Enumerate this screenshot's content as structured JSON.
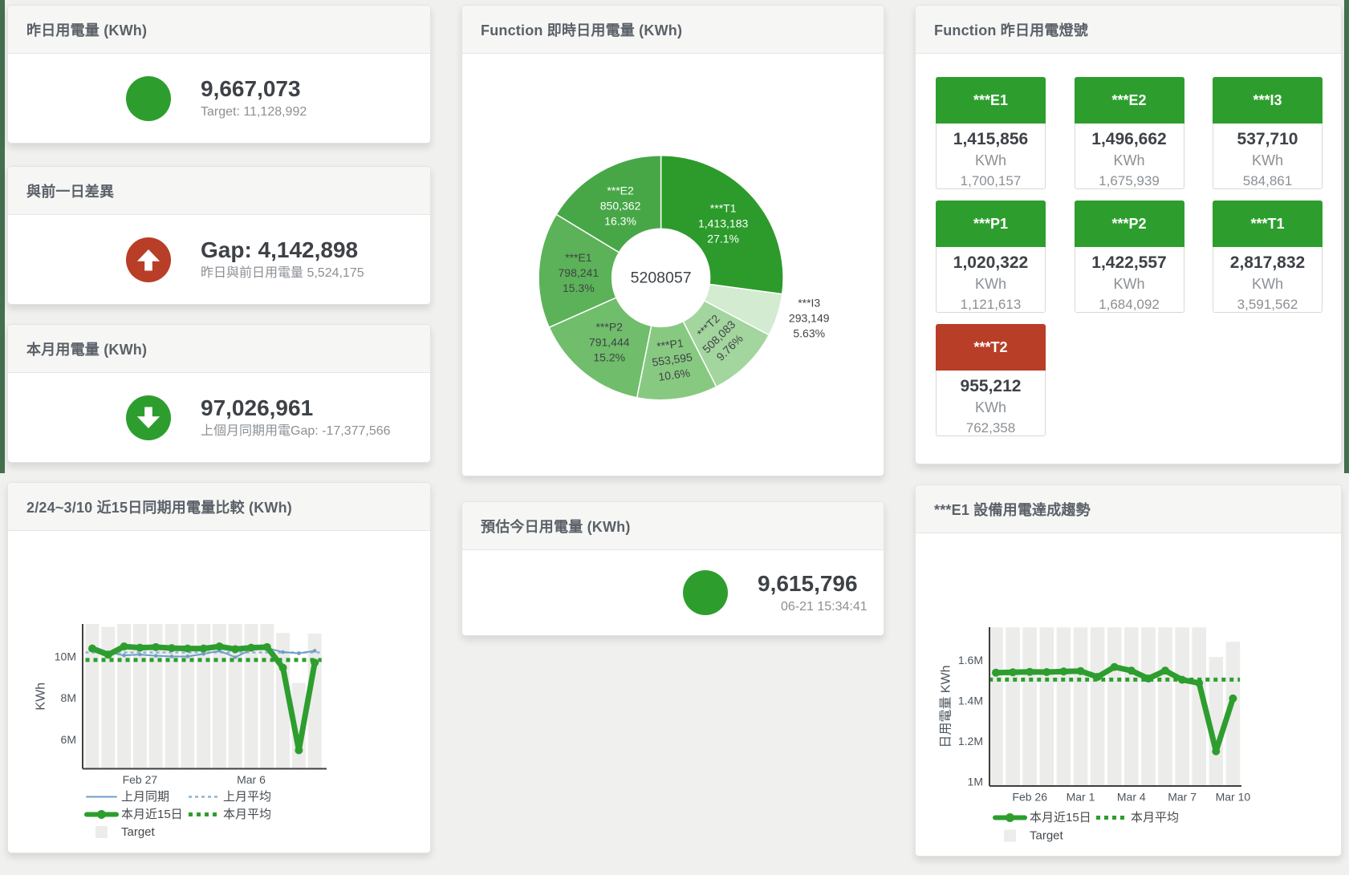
{
  "page": {
    "background": "#f0f0ee",
    "edge_strip_color": "#44704d",
    "accent_green": "#2d9e2e",
    "accent_red": "#b93e27"
  },
  "cards": {
    "yesterday": {
      "title": "昨日用電量 (KWh)",
      "value": "9,667,073",
      "subtitle": "Target: 11,128,992",
      "icon": "green-circle",
      "icon_color": "#2d9e2e"
    },
    "gap_prev_day": {
      "title": "與前一日差異",
      "value": "Gap: 4,142,898",
      "subtitle": "昨日與前日用電量 5,524,175",
      "icon": "red-circle-arrow-up",
      "icon_color": "#b93e27"
    },
    "month": {
      "title": "本月用電量 (KWh)",
      "value": "97,026,961",
      "subtitle": "上個月同期用電Gap: -17,377,566",
      "icon": "green-circle-arrow-down",
      "icon_color": "#2d9e2e"
    },
    "realtime_donut": {
      "title": "Function 即時日用電量 (KWh)"
    },
    "forecast": {
      "title": "預估今日用電量 (KWh)",
      "value": "9,615,796",
      "subtitle": "06-21 15:34:41",
      "icon": "green-circle",
      "icon_color": "#2d9e2e"
    },
    "lights": {
      "title": "Function 昨日用電燈號",
      "unit": "KWh",
      "tiles": [
        {
          "label": "***E1",
          "value": "1,415,856",
          "unit": "KWh",
          "target": "1,700,157",
          "color": "#2d9e2e"
        },
        {
          "label": "***E2",
          "value": "1,496,662",
          "unit": "KWh",
          "target": "1,675,939",
          "color": "#2d9e2e"
        },
        {
          "label": "***I3",
          "value": "537,710",
          "unit": "KWh",
          "target": "584,861",
          "color": "#2d9e2e"
        },
        {
          "label": "***P1",
          "value": "1,020,322",
          "unit": "KWh",
          "target": "1,121,613",
          "color": "#2d9e2e"
        },
        {
          "label": "***P2",
          "value": "1,422,557",
          "unit": "KWh",
          "target": "1,684,092",
          "color": "#2d9e2e"
        },
        {
          "label": "***T1",
          "value": "2,817,832",
          "unit": "KWh",
          "target": "3,591,562",
          "color": "#2d9e2e"
        },
        {
          "label": "***T2",
          "value": "955,212",
          "unit": "KWh",
          "target": "762,358",
          "color": "#b93e27"
        }
      ]
    },
    "compare15": {
      "title": "2/24~3/10 近15日同期用電量比較 (KWh)"
    },
    "e1_trend": {
      "title": "***E1 設備用電達成趨勢"
    }
  },
  "chart_data": [
    {
      "type": "pie",
      "title": "Function 即時日用電量 (KWh)",
      "hole": 0.4,
      "center_label": "5208057",
      "start": "top",
      "direction": "clockwise",
      "slices": [
        {
          "label": "***T1",
          "value": 1413183,
          "value_text": "1,413,183",
          "pct_text": "27.1%",
          "color": "#2c9b2c",
          "text_color": "#ffffff",
          "placement": "inside"
        },
        {
          "label": "***I3",
          "value": 293149,
          "value_text": "293,149",
          "pct_text": "5.63%",
          "color": "#d3ebd0",
          "text_color": "#3f4347",
          "placement": "outside"
        },
        {
          "label": "***T2",
          "value": 508083,
          "value_text": "508,083",
          "pct_text": "9.76%",
          "color": "#a3d59e",
          "text_color": "#3f4347",
          "placement": "inside"
        },
        {
          "label": "***P1",
          "value": 553595,
          "value_text": "553,595",
          "pct_text": "10.6%",
          "color": "#88c982",
          "text_color": "#3f4347",
          "placement": "inside"
        },
        {
          "label": "***P2",
          "value": 791444,
          "value_text": "791,444",
          "pct_text": "15.2%",
          "color": "#70bd6b",
          "text_color": "#3f4347",
          "placement": "inside"
        },
        {
          "label": "***E1",
          "value": 798241,
          "value_text": "798,241",
          "pct_text": "15.3%",
          "color": "#5cb258",
          "text_color": "#3f4347",
          "placement": "inside"
        },
        {
          "label": "***E2",
          "value": 850362,
          "value_text": "850,362",
          "pct_text": "16.3%",
          "color": "#47a747",
          "text_color": "#ffffff",
          "placement": "inside"
        }
      ]
    },
    {
      "type": "bar+line",
      "title": "2/24~3/10 近15日同期用電量比較 (KWh)",
      "xlabel": "",
      "ylabel": "KWh",
      "ylim": [
        4580000,
        11566000
      ],
      "grid": false,
      "legend_position": "bottom-left",
      "yticks": [
        {
          "v": 6000000,
          "label": "6M"
        },
        {
          "v": 8000000,
          "label": "8M"
        },
        {
          "v": 10000000,
          "label": "10M"
        }
      ],
      "x_count": 15,
      "x_dates": "Feb 24 - Mar 10",
      "xticks": [
        {
          "i": 3,
          "label": "Feb 27"
        },
        {
          "i": 10,
          "label": "Mar 6"
        }
      ],
      "bars": {
        "name": "Target",
        "color": "#ececea",
        "values": [
          11600000,
          11420000,
          11600000,
          11600000,
          11600000,
          11600000,
          11600000,
          11600000,
          11600000,
          11600000,
          11600000,
          11600000,
          11130000,
          8720000,
          11100000
        ]
      },
      "series": [
        {
          "name": "上月同期",
          "color": "#6f9ec7",
          "width": 2,
          "marker": 2.3,
          "values": [
            10490000,
            10200000,
            10050000,
            10090000,
            10030000,
            10000000,
            10000000,
            10120000,
            10270000,
            9960000,
            10330000,
            10400000,
            10210000,
            10150000,
            10270000
          ]
        },
        {
          "name": "本月近15日",
          "color": "#2d9e2e",
          "width": 7,
          "marker": 5,
          "values": [
            10380000,
            10080000,
            10480000,
            10420000,
            10450000,
            10400000,
            10380000,
            10380000,
            10480000,
            10350000,
            10420000,
            10450000,
            9450000,
            5470000,
            9700000
          ]
        }
      ],
      "hlines": [
        {
          "name": "上月平均",
          "color": "#8cb2d6",
          "width": 2.5,
          "dash": "4 4",
          "value": 10190000
        },
        {
          "name": "本月平均",
          "color": "#2d9e2e",
          "width": 5,
          "dash": "5 5",
          "value": 9830000
        }
      ]
    },
    {
      "type": "bar+line",
      "title": "***E1 設備用電達成趨勢",
      "xlabel": "",
      "ylabel": "日用電量 KWh",
      "ylim": [
        979000,
        1761000
      ],
      "grid": false,
      "legend_position": "bottom-left",
      "yticks": [
        {
          "v": 1000000,
          "label": "1M"
        },
        {
          "v": 1200000,
          "label": "1.2M"
        },
        {
          "v": 1400000,
          "label": "1.4M"
        },
        {
          "v": 1600000,
          "label": "1.6M"
        }
      ],
      "x_count": 15,
      "x_dates": "Feb 24 - Mar 10",
      "xticks": [
        {
          "i": 2,
          "label": "Feb 26"
        },
        {
          "i": 5,
          "label": "Mar 1"
        },
        {
          "i": 8,
          "label": "Mar 4"
        },
        {
          "i": 11,
          "label": "Mar 7"
        },
        {
          "i": 14,
          "label": "Mar 10"
        }
      ],
      "bars": {
        "name": "Target",
        "color": "#ececea",
        "values": [
          1760000,
          1760000,
          1760000,
          1760000,
          1760000,
          1760000,
          1760000,
          1760000,
          1760000,
          1760000,
          1760000,
          1760000,
          1760000,
          1614000,
          1689000
        ]
      },
      "series": [
        {
          "name": "本月近15日",
          "color": "#2d9e2e",
          "width": 7,
          "marker": 5,
          "values": [
            1537000,
            1539000,
            1541000,
            1540000,
            1543000,
            1545000,
            1516000,
            1565000,
            1547000,
            1508000,
            1547000,
            1502000,
            1486000,
            1150000,
            1410000
          ]
        }
      ],
      "hlines": [
        {
          "name": "本月平均",
          "color": "#2d9e2e",
          "width": 5,
          "dash": "5 5",
          "value": 1503000
        }
      ]
    }
  ]
}
